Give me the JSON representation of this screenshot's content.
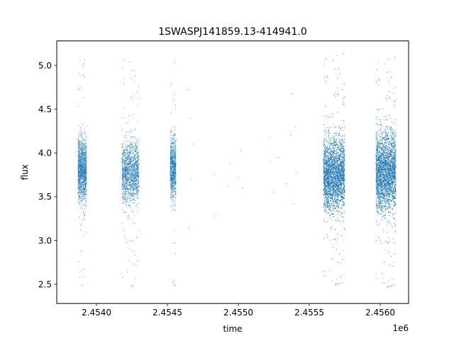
{
  "chart_data": {
    "type": "scatter",
    "title": "1SWASPJ141859.13-414941.0",
    "xlabel": "time",
    "ylabel": "flux",
    "x_offset_label": "1e6",
    "xlim": [
      2.45372,
      2.4562
    ],
    "ylim": [
      2.28,
      5.28
    ],
    "x_ticks": [
      2.454,
      2.4545,
      2.455,
      2.4555,
      2.456
    ],
    "x_tick_labels": [
      "2.4540",
      "2.4545",
      "2.4550",
      "2.4555",
      "2.4560"
    ],
    "y_ticks": [
      2.5,
      3.0,
      3.5,
      4.0,
      4.5,
      5.0
    ],
    "y_tick_labels": [
      "2.5",
      "3.0",
      "3.5",
      "4.0",
      "4.5",
      "5.0"
    ],
    "grid": false,
    "legend": "none",
    "marker_color": "#1f77b4",
    "series_summary": [
      {
        "x_start": 2.45387,
        "x_end": 2.45393,
        "approx_points": 1400,
        "y_center": 3.8,
        "y_spread": 0.18,
        "y_min": 2.48,
        "y_max": 5.13
      },
      {
        "x_start": 2.45418,
        "x_end": 2.4543,
        "approx_points": 1600,
        "y_center": 3.78,
        "y_spread": 0.17,
        "y_min": 2.44,
        "y_max": 5.12
      },
      {
        "x_start": 2.45452,
        "x_end": 2.45456,
        "approx_points": 900,
        "y_center": 3.82,
        "y_spread": 0.17,
        "y_min": 2.44,
        "y_max": 5.05
      },
      {
        "x_start": 2.4556,
        "x_end": 2.45575,
        "approx_points": 4200,
        "y_center": 3.75,
        "y_spread": 0.2,
        "y_min": 2.46,
        "y_max": 5.14
      },
      {
        "x_start": 2.45597,
        "x_end": 2.45611,
        "approx_points": 4200,
        "y_center": 3.78,
        "y_spread": 0.22,
        "y_min": 2.43,
        "y_max": 5.1
      }
    ],
    "sparse_points": [
      [
        2.45464,
        4.72
      ],
      [
        2.45465,
        3.15
      ],
      [
        2.45466,
        4.4
      ],
      [
        2.45467,
        3.7
      ],
      [
        2.45468,
        4.1
      ],
      [
        2.45483,
        3.75
      ],
      [
        2.45484,
        3.28
      ],
      [
        2.45492,
        3.62
      ],
      [
        2.45494,
        3.88
      ],
      [
        2.455,
        3.72
      ],
      [
        2.45502,
        4.03
      ],
      [
        2.45503,
        3.6
      ],
      [
        2.45522,
        4.18
      ],
      [
        2.45523,
        3.9
      ],
      [
        2.45524,
        3.55
      ],
      [
        2.45528,
        3.95
      ],
      [
        2.45534,
        3.65
      ],
      [
        2.45537,
        4.2
      ],
      [
        2.45538,
        4.68
      ],
      [
        2.45539,
        3.42
      ],
      [
        2.4554,
        4.3
      ],
      [
        2.45541,
        3.78
      ]
    ]
  }
}
